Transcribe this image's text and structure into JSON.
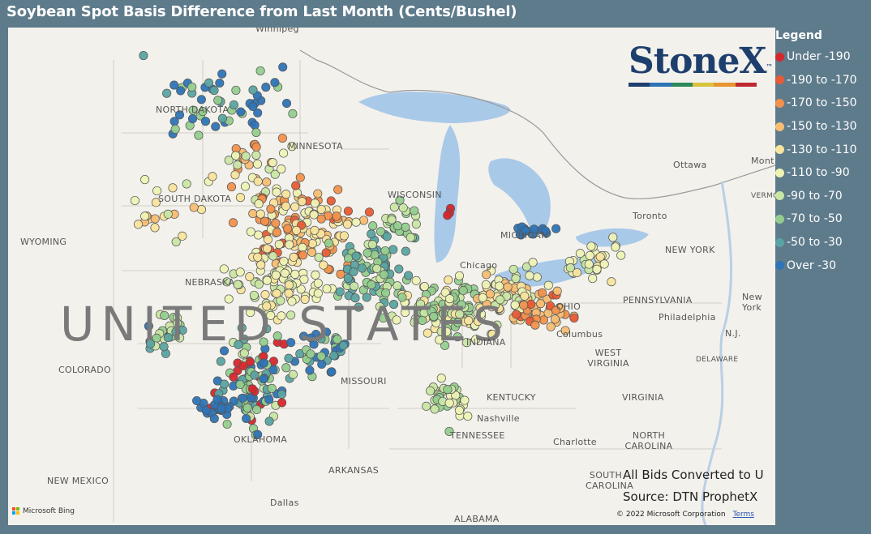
{
  "title": "Soybean Spot Basis Difference from Last Month (Cents/Bushel)",
  "legend": {
    "title": "Legend",
    "items": [
      {
        "label": "Under -190",
        "color": "#d7262c"
      },
      {
        "label": "-190 to -170",
        "color": "#e85b36"
      },
      {
        "label": "-170 to -150",
        "color": "#f2914c"
      },
      {
        "label": "-150 to -130",
        "color": "#f7bd73"
      },
      {
        "label": "-130 to -110",
        "color": "#f9e49e"
      },
      {
        "label": "-110 to -90",
        "color": "#eef2b4"
      },
      {
        "label": "-90 to -70",
        "color": "#c9e6a4"
      },
      {
        "label": "-70 to -50",
        "color": "#94cd8e"
      },
      {
        "label": "-50 to -30",
        "color": "#5aa4a2"
      },
      {
        "label": "Over -30",
        "color": "#2e74b6"
      }
    ]
  },
  "logo": {
    "text": "StoneX",
    "trademark": "™",
    "bar_colors": [
      "#1e3f6d",
      "#2c73b6",
      "#2a8a5a",
      "#d9c23b",
      "#e8952f",
      "#c0282f"
    ]
  },
  "map": {
    "labels": [
      {
        "text": "Winnipeg",
        "name": "label-winnipeg"
      },
      {
        "text": "NORTH DAKOTA",
        "name": "label-north-dakota"
      },
      {
        "text": "MINNESOTA",
        "name": "label-minnesota"
      },
      {
        "text": "SOUTH DAKOTA",
        "name": "label-south-dakota"
      },
      {
        "text": "WYOMING",
        "name": "label-wyoming"
      },
      {
        "text": "NEBRASKA",
        "name": "label-nebraska"
      },
      {
        "text": "COLORADO",
        "name": "label-colorado"
      },
      {
        "text": "OKLAHOMA",
        "name": "label-oklahoma"
      },
      {
        "text": "NEW MEXICO",
        "name": "label-new-mexico"
      },
      {
        "text": "Dallas",
        "name": "label-dallas"
      },
      {
        "text": "ARKANSAS",
        "name": "label-arkansas"
      },
      {
        "text": "MISSOURI",
        "name": "label-missouri"
      },
      {
        "text": "WISCONSIN",
        "name": "label-wisconsin"
      },
      {
        "text": "Chicago",
        "name": "label-chicago"
      },
      {
        "text": "MICHIGAN",
        "name": "label-michigan"
      },
      {
        "text": "OHIO",
        "name": "label-ohio"
      },
      {
        "text": "INDIANA",
        "name": "label-indiana"
      },
      {
        "text": "Columbus",
        "name": "label-columbus"
      },
      {
        "text": "KENTUCKY",
        "name": "label-kentucky"
      },
      {
        "text": "Nashville",
        "name": "label-nashville"
      },
      {
        "text": "TENNESSEE",
        "name": "label-tennessee"
      },
      {
        "text": "WEST VIRGINIA",
        "name": "label-west-virginia"
      },
      {
        "text": "VIRGINIA",
        "name": "label-virginia"
      },
      {
        "text": "PENNSYLVANIA",
        "name": "label-pennsylvania"
      },
      {
        "text": "NEW YORK",
        "name": "label-new-york"
      },
      {
        "text": "Ottawa",
        "name": "label-ottawa"
      },
      {
        "text": "Toronto",
        "name": "label-toronto"
      },
      {
        "text": "Philadelphia",
        "name": "label-philadelphia"
      },
      {
        "text": "New York",
        "name": "label-new-york-city"
      },
      {
        "text": "N.J.",
        "name": "label-nj"
      },
      {
        "text": "DELAWARE",
        "name": "label-delaware"
      },
      {
        "text": "NORTH CAROLINA",
        "name": "label-north-carolina"
      },
      {
        "text": "Charlotte",
        "name": "label-charlotte"
      },
      {
        "text": "SOUTH CAROLINA",
        "name": "label-south-carolina"
      },
      {
        "text": "ALABAMA",
        "name": "label-alabama"
      },
      {
        "text": "Mont",
        "name": "label-montreal"
      },
      {
        "text": "VERMO",
        "name": "label-vermont"
      }
    ],
    "country_label": "UNITED STATES",
    "notes": [
      "All Bids Converted to U",
      "Source: DTN ProphetX"
    ],
    "copyright": "© 2022 Microsoft Corporation",
    "terms": "Terms",
    "attribution": "Microsoft Bing"
  }
}
